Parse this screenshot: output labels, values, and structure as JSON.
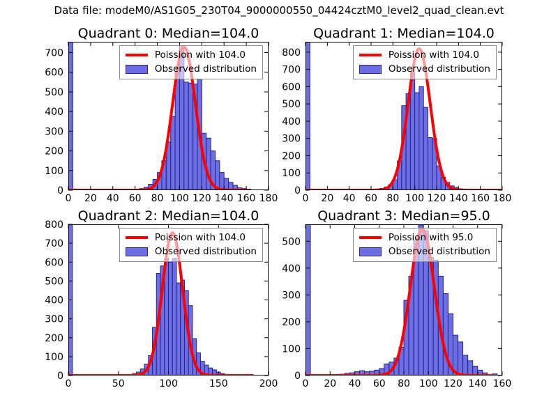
{
  "figure": {
    "title": "Data file: modeM0/AS1G05_230T04_9000000550_04424cztM0_level2_quad_clean.evt",
    "background": "#ffffff",
    "colors": {
      "hist_face": "#6e6ee4",
      "hist_edge": "#23238c",
      "curve": "#ff0000",
      "axis": "#000000",
      "legend_border": "#8a8a8a"
    }
  },
  "chart_data": [
    {
      "type": "bar",
      "quadrant": 0,
      "title": "Quadrant 0: Median=104.0",
      "median": 104.0,
      "legend": [
        "Poission with 104.0",
        "Observed distribution"
      ],
      "xlim": [
        0,
        180
      ],
      "ylim": [
        0,
        755
      ],
      "xticks": [
        0,
        20,
        40,
        60,
        80,
        100,
        120,
        140,
        160,
        180
      ],
      "yticks": [
        0,
        100,
        200,
        300,
        400,
        500,
        600,
        700
      ],
      "bin_width": 4,
      "grid": false,
      "legend_position": "upper right",
      "bars": [
        [
          0,
          755
        ],
        [
          64,
          8
        ],
        [
          68,
          15
        ],
        [
          72,
          30
        ],
        [
          76,
          55
        ],
        [
          80,
          90
        ],
        [
          84,
          150
        ],
        [
          88,
          245
        ],
        [
          92,
          375
        ],
        [
          96,
          600
        ],
        [
          100,
          735
        ],
        [
          104,
          550
        ],
        [
          108,
          545
        ],
        [
          112,
          540
        ],
        [
          116,
          565
        ],
        [
          120,
          290
        ],
        [
          124,
          265
        ],
        [
          128,
          200
        ],
        [
          132,
          150
        ],
        [
          136,
          90
        ],
        [
          140,
          60
        ],
        [
          144,
          40
        ],
        [
          148,
          25
        ],
        [
          152,
          12
        ],
        [
          156,
          8
        ],
        [
          160,
          5
        ]
      ],
      "curve": {
        "lambda": 104.0,
        "peak": 730,
        "x_start": 0,
        "x_end": 163
      }
    },
    {
      "type": "bar",
      "quadrant": 1,
      "title": "Quadrant 1: Median=104.0",
      "median": 104.0,
      "legend": [
        "Poission with 104.0",
        "Observed distribution"
      ],
      "xlim": [
        0,
        180
      ],
      "ylim": [
        0,
        860
      ],
      "xticks": [
        0,
        20,
        40,
        60,
        80,
        100,
        120,
        140,
        160,
        180
      ],
      "yticks": [
        0,
        100,
        200,
        300,
        400,
        500,
        600,
        700,
        800
      ],
      "bin_width": 4,
      "grid": false,
      "legend_position": "upper right",
      "bars": [
        [
          0,
          860
        ],
        [
          64,
          5
        ],
        [
          68,
          10
        ],
        [
          72,
          18
        ],
        [
          76,
          32
        ],
        [
          80,
          60
        ],
        [
          84,
          170
        ],
        [
          88,
          490
        ],
        [
          92,
          560
        ],
        [
          96,
          680
        ],
        [
          100,
          565
        ],
        [
          104,
          600
        ],
        [
          108,
          480
        ],
        [
          112,
          305
        ],
        [
          116,
          300
        ],
        [
          120,
          140
        ],
        [
          124,
          75
        ],
        [
          128,
          45
        ],
        [
          132,
          25
        ],
        [
          136,
          15
        ],
        [
          140,
          8
        ],
        [
          144,
          5
        ]
      ],
      "curve": {
        "lambda": 104.0,
        "peak": 820,
        "x_start": 0,
        "x_end": 180
      }
    },
    {
      "type": "bar",
      "quadrant": 2,
      "title": "Quadrant 2: Median=104.0",
      "median": 104.0,
      "legend": [
        "Poission with 104.0",
        "Observed distribution"
      ],
      "xlim": [
        0,
        200
      ],
      "ylim": [
        0,
        800
      ],
      "xticks": [
        0,
        50,
        100,
        150,
        200
      ],
      "yticks": [
        0,
        100,
        200,
        300,
        400,
        500,
        600,
        700,
        800
      ],
      "bin_width": 4,
      "grid": false,
      "legend_position": "upper right",
      "bars": [
        [
          0,
          800
        ],
        [
          60,
          5
        ],
        [
          64,
          10
        ],
        [
          68,
          18
        ],
        [
          72,
          35
        ],
        [
          76,
          60
        ],
        [
          80,
          105
        ],
        [
          84,
          255
        ],
        [
          88,
          540
        ],
        [
          92,
          580
        ],
        [
          96,
          620
        ],
        [
          100,
          600
        ],
        [
          104,
          620
        ],
        [
          108,
          490
        ],
        [
          112,
          505
        ],
        [
          116,
          450
        ],
        [
          120,
          370
        ],
        [
          124,
          195
        ],
        [
          128,
          120
        ],
        [
          132,
          75
        ],
        [
          136,
          55
        ],
        [
          140,
          40
        ],
        [
          144,
          30
        ],
        [
          148,
          18
        ],
        [
          152,
          10
        ],
        [
          156,
          6
        ],
        [
          180,
          4
        ]
      ],
      "curve": {
        "lambda": 104.0,
        "peak": 755,
        "x_start": 0,
        "x_end": 185
      }
    },
    {
      "type": "bar",
      "quadrant": 3,
      "title": "Quadrant 3: Median=95.0",
      "median": 95.0,
      "legend": [
        "Poission with 95.0",
        "Observed distribution"
      ],
      "xlim": [
        0,
        160
      ],
      "ylim": [
        0,
        563
      ],
      "xticks": [
        0,
        20,
        40,
        60,
        80,
        100,
        120,
        140,
        160
      ],
      "yticks": [
        0,
        100,
        200,
        300,
        400,
        500
      ],
      "bin_width": 4,
      "grid": false,
      "legend_position": "upper right",
      "bars": [
        [
          0,
          563
        ],
        [
          28,
          5
        ],
        [
          32,
          8
        ],
        [
          36,
          10
        ],
        [
          40,
          14
        ],
        [
          44,
          18
        ],
        [
          48,
          14
        ],
        [
          52,
          16
        ],
        [
          56,
          20
        ],
        [
          60,
          26
        ],
        [
          64,
          43
        ],
        [
          68,
          50
        ],
        [
          72,
          65
        ],
        [
          76,
          105
        ],
        [
          80,
          280
        ],
        [
          84,
          370
        ],
        [
          88,
          505
        ],
        [
          92,
          560
        ],
        [
          96,
          540
        ],
        [
          100,
          440
        ],
        [
          104,
          430
        ],
        [
          108,
          370
        ],
        [
          112,
          305
        ],
        [
          116,
          230
        ],
        [
          120,
          150
        ],
        [
          124,
          125
        ],
        [
          128,
          75
        ],
        [
          132,
          55
        ],
        [
          136,
          35
        ],
        [
          140,
          20
        ],
        [
          144,
          10
        ],
        [
          152,
          6
        ]
      ],
      "curve": {
        "lambda": 95.0,
        "peak": 545,
        "x_start": 0,
        "x_end": 153
      }
    }
  ]
}
